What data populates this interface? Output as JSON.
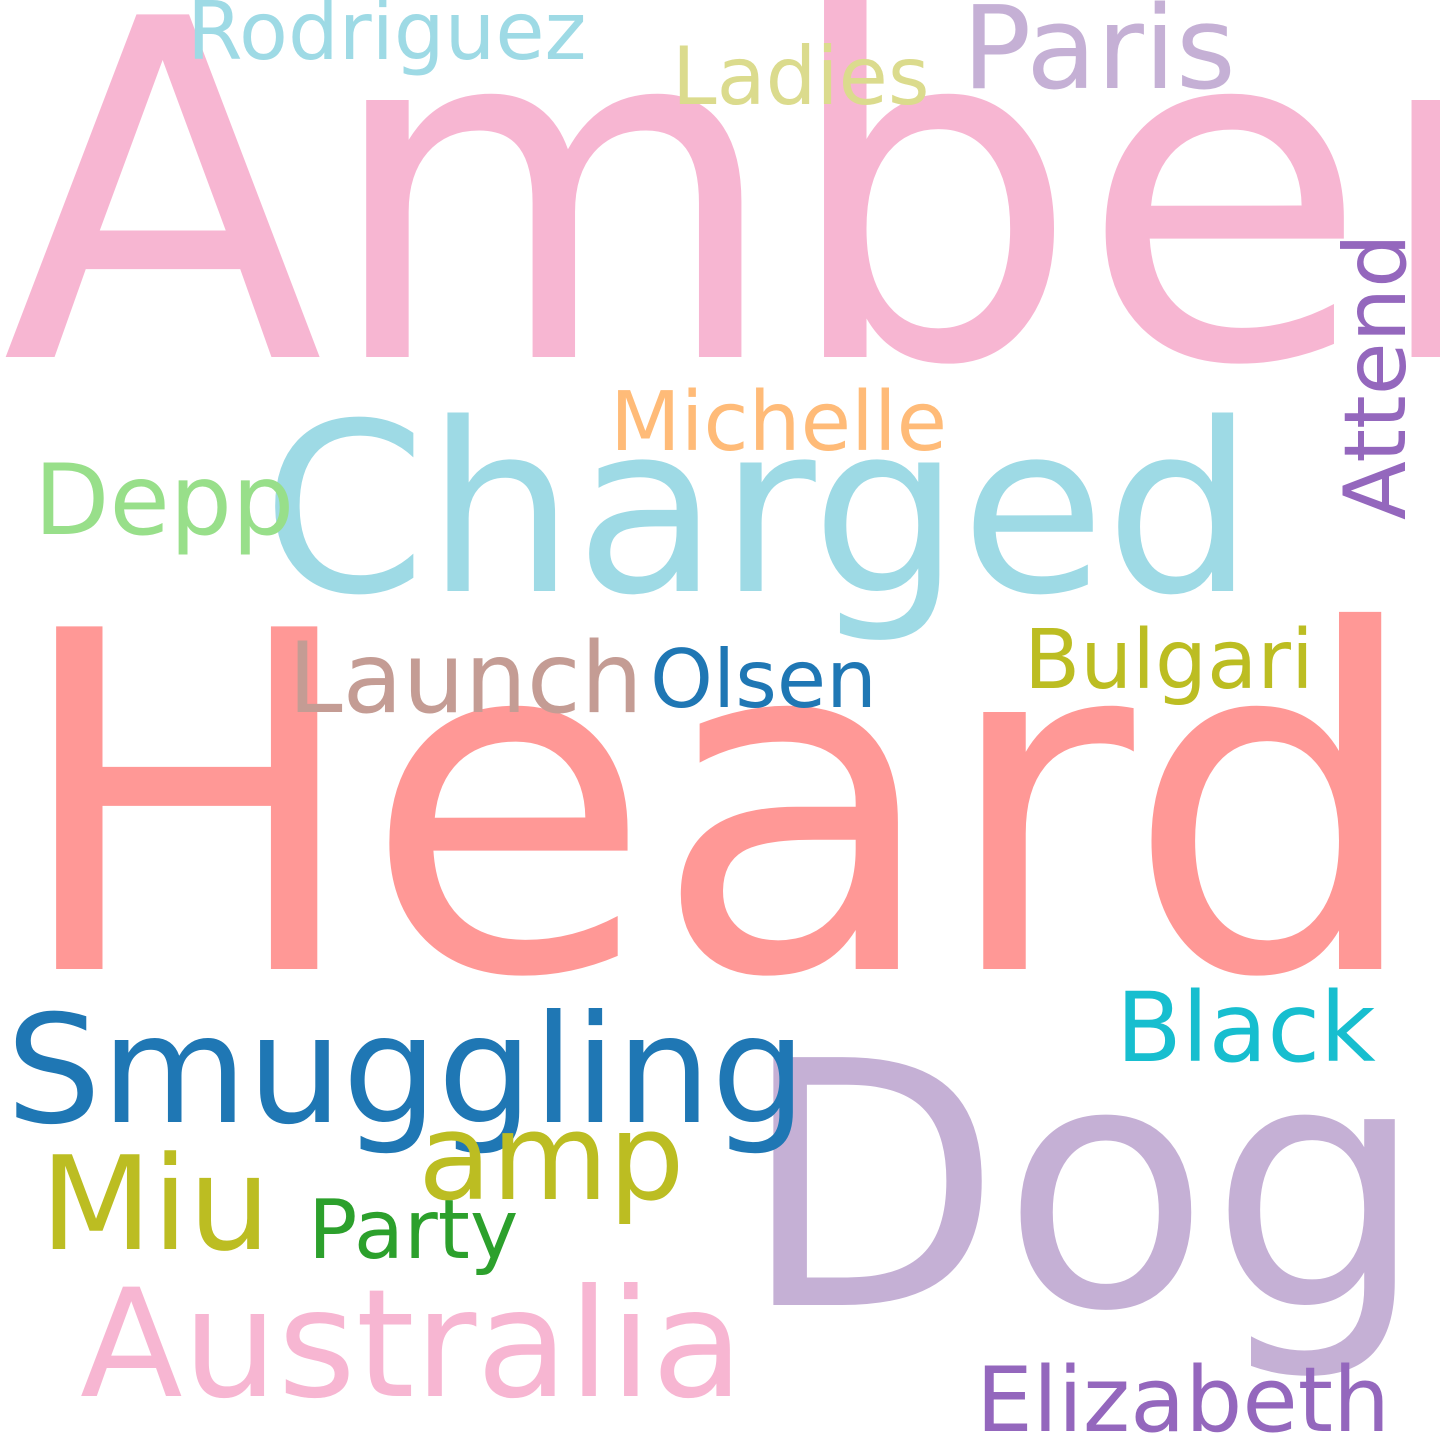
{
  "words": [
    {
      "text": "Amber",
      "color": "#f7b6d2"
    },
    {
      "text": "Heard",
      "color": "#ff9896"
    },
    {
      "text": "Charged",
      "color": "#9edae5"
    },
    {
      "text": "Dog",
      "color": "#c5b0d5"
    },
    {
      "text": "Smuggling",
      "color": "#1f77b4"
    },
    {
      "text": "Australia",
      "color": "#f7b6d2"
    },
    {
      "text": "Miu",
      "color": "#bcbd22"
    },
    {
      "text": "amp",
      "color": "#bcbd22"
    },
    {
      "text": "Party",
      "color": "#2ca02c"
    },
    {
      "text": "Launch",
      "color": "#c49c94"
    },
    {
      "text": "Olsen",
      "color": "#1f77b4"
    },
    {
      "text": "Bulgari",
      "color": "#bcbd22"
    },
    {
      "text": "Black",
      "color": "#17becf"
    },
    {
      "text": "Elizabeth",
      "color": "#9467bd"
    },
    {
      "text": "Michelle",
      "color": "#ffbb78"
    },
    {
      "text": "Depp",
      "color": "#98df8a"
    },
    {
      "text": "Paris",
      "color": "#c5b0d5"
    },
    {
      "text": "Ladies",
      "color": "#dbdb8d"
    },
    {
      "text": "Rodriguez",
      "color": "#9edae5"
    },
    {
      "text": "Attend",
      "color": "#9467bd"
    }
  ]
}
